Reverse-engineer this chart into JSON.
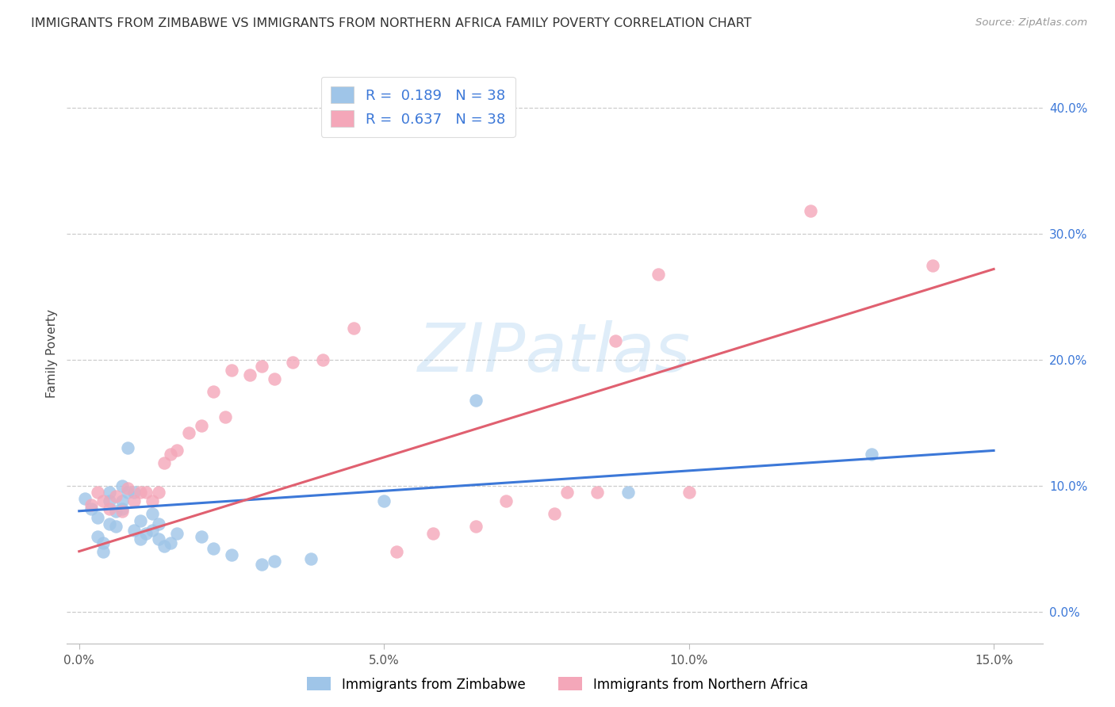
{
  "title": "IMMIGRANTS FROM ZIMBABWE VS IMMIGRANTS FROM NORTHERN AFRICA FAMILY POVERTY CORRELATION CHART",
  "source_text": "Source: ZipAtlas.com",
  "ylabel": "Family Poverty",
  "xlabel_tick_values": [
    0.0,
    0.05,
    0.1,
    0.15
  ],
  "xlabel_ticks": [
    "0.0%",
    "5.0%",
    "10.0%",
    "15.0%"
  ],
  "ylabel_tick_values": [
    0.0,
    0.1,
    0.2,
    0.3,
    0.4
  ],
  "ylabel_ticks": [
    "0.0%",
    "10.0%",
    "20.0%",
    "30.0%",
    "40.0%"
  ],
  "xlim": [
    -0.002,
    0.158
  ],
  "ylim": [
    -0.025,
    0.435
  ],
  "legend_label1": "Immigrants from Zimbabwe",
  "legend_label2": "Immigrants from Northern Africa",
  "r1": "0.189",
  "r2": "0.637",
  "n1": "38",
  "n2": "38",
  "color_blue": "#9fc5e8",
  "color_pink": "#f4a7b9",
  "line_color_blue": "#3c78d8",
  "line_color_pink": "#e06070",
  "legend_text_color": "#3c78d8",
  "watermark": "ZIPatlas",
  "background_color": "#ffffff",
  "grid_color": "#cccccc",
  "zimbabwe_x": [
    0.001,
    0.002,
    0.003,
    0.003,
    0.004,
    0.004,
    0.005,
    0.005,
    0.005,
    0.006,
    0.006,
    0.007,
    0.007,
    0.007,
    0.008,
    0.008,
    0.009,
    0.009,
    0.01,
    0.01,
    0.011,
    0.012,
    0.012,
    0.013,
    0.013,
    0.014,
    0.015,
    0.016,
    0.02,
    0.022,
    0.025,
    0.03,
    0.032,
    0.038,
    0.05,
    0.065,
    0.09,
    0.13
  ],
  "zimbabwe_y": [
    0.09,
    0.082,
    0.075,
    0.06,
    0.055,
    0.048,
    0.07,
    0.088,
    0.095,
    0.08,
    0.068,
    0.082,
    0.088,
    0.1,
    0.095,
    0.13,
    0.095,
    0.065,
    0.058,
    0.072,
    0.062,
    0.078,
    0.065,
    0.07,
    0.058,
    0.052,
    0.055,
    0.062,
    0.06,
    0.05,
    0.045,
    0.038,
    0.04,
    0.042,
    0.088,
    0.168,
    0.095,
    0.125
  ],
  "northern_africa_x": [
    0.002,
    0.003,
    0.004,
    0.005,
    0.006,
    0.007,
    0.008,
    0.009,
    0.01,
    0.011,
    0.012,
    0.013,
    0.014,
    0.015,
    0.016,
    0.018,
    0.02,
    0.022,
    0.024,
    0.025,
    0.028,
    0.03,
    0.032,
    0.035,
    0.04,
    0.045,
    0.052,
    0.058,
    0.065,
    0.07,
    0.078,
    0.08,
    0.085,
    0.088,
    0.095,
    0.1,
    0.12,
    0.14
  ],
  "northern_africa_y": [
    0.085,
    0.095,
    0.088,
    0.082,
    0.092,
    0.08,
    0.098,
    0.088,
    0.095,
    0.095,
    0.088,
    0.095,
    0.118,
    0.125,
    0.128,
    0.142,
    0.148,
    0.175,
    0.155,
    0.192,
    0.188,
    0.195,
    0.185,
    0.198,
    0.2,
    0.225,
    0.048,
    0.062,
    0.068,
    0.088,
    0.078,
    0.095,
    0.095,
    0.215,
    0.268,
    0.095,
    0.318,
    0.275
  ],
  "blue_line_x0": 0.0,
  "blue_line_y0": 0.08,
  "blue_line_x1": 0.15,
  "blue_line_y1": 0.128,
  "pink_line_x0": 0.0,
  "pink_line_y0": 0.048,
  "pink_line_x1": 0.15,
  "pink_line_y1": 0.272
}
